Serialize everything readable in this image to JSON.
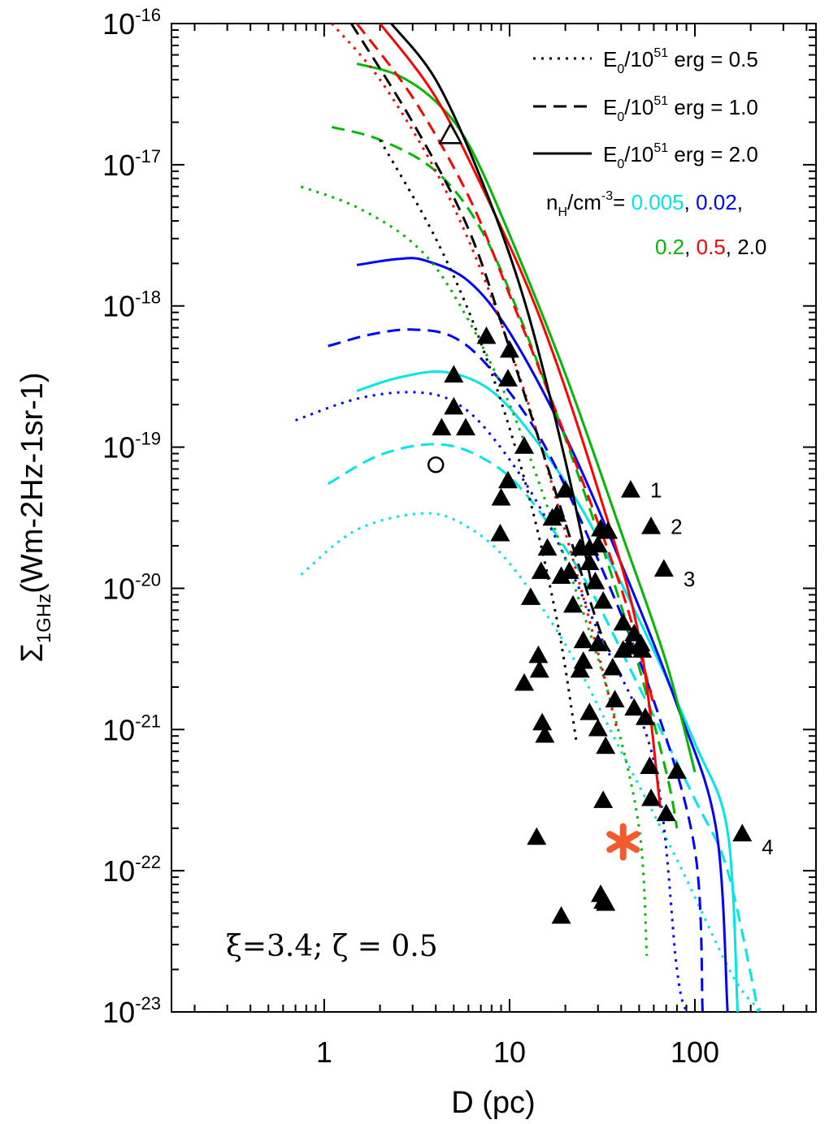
{
  "chart_data": {
    "type": "line",
    "xlabel": "D (pc)",
    "ylabel": {
      "symbol": "Σ",
      "subscript": "1GHz",
      "units": "(Wm-2Hz-1sr-1)"
    },
    "xscale": "log",
    "yscale": "log",
    "xlim": [
      0.15,
      450
    ],
    "ylim": [
      1e-23,
      1e-16
    ],
    "x_ticks": [
      {
        "value": 1,
        "label": "1"
      },
      {
        "value": 10,
        "label": "10"
      },
      {
        "value": 100,
        "label": "100"
      }
    ],
    "y_ticks": [
      {
        "value": 1e-16,
        "base": "10",
        "exp": "-16"
      },
      {
        "value": 1e-17,
        "base": "10",
        "exp": "-17"
      },
      {
        "value": 1e-18,
        "base": "10",
        "exp": "-18"
      },
      {
        "value": 1e-19,
        "base": "10",
        "exp": "-19"
      },
      {
        "value": 1e-20,
        "base": "10",
        "exp": "-20"
      },
      {
        "value": 1e-21,
        "base": "10",
        "exp": "-21"
      },
      {
        "value": 1e-22,
        "base": "10",
        "exp": "-22"
      },
      {
        "value": 1e-23,
        "base": "10",
        "exp": "-23"
      }
    ],
    "parameter_text": "ξ=3.4; ζ = 0.5",
    "legend": {
      "position": "top-right",
      "line_entries": [
        {
          "style": "dotted",
          "pre": "E",
          "sub": "0",
          "mid": "/10",
          "sup": "51",
          "post": " erg = 0.5"
        },
        {
          "style": "dashed",
          "pre": "E",
          "sub": "0",
          "mid": "/10",
          "sup": "51",
          "post": " erg = 1.0"
        },
        {
          "style": "solid",
          "pre": "E",
          "sub": "0",
          "mid": "/10",
          "sup": "51",
          "post": " erg = 2.0"
        }
      ],
      "density_title": {
        "pre": "n",
        "sub": "H",
        "mid": "/cm",
        "sup": "-3",
        "post": "= "
      },
      "densities": [
        {
          "label": "0.005",
          "color": "#00e5e5"
        },
        {
          "label": "0.02",
          "color": "#0000ff"
        },
        {
          "label": "0.2",
          "color": "#00b800"
        },
        {
          "label": "0.5",
          "color": "#ff0000"
        },
        {
          "label": "2.0",
          "color": "#000000"
        }
      ]
    },
    "series": [
      {
        "name": "n=0.005, E=0.5",
        "color": "#00e5e5",
        "style": "dotted",
        "points": [
          [
            0.75,
            1.25e-20
          ],
          [
            1.5,
            2.6e-20
          ],
          [
            3.5,
            3.4e-20
          ],
          [
            6,
            2.7e-20
          ],
          [
            10,
            1.5e-20
          ],
          [
            20,
            4e-21
          ],
          [
            40,
            7e-22
          ],
          [
            80,
            1.2e-22
          ],
          [
            160,
            1.8e-23
          ],
          [
            230,
            1e-23
          ]
        ]
      },
      {
        "name": "n=0.005, E=1.0",
        "color": "#00e5e5",
        "style": "dashed",
        "points": [
          [
            1.05,
            5.5e-20
          ],
          [
            2,
            8.8e-20
          ],
          [
            4,
            1.05e-19
          ],
          [
            7,
            8.5e-20
          ],
          [
            12,
            4.8e-20
          ],
          [
            25,
            1.2e-20
          ],
          [
            50,
            2e-21
          ],
          [
            100,
            3.2e-22
          ],
          [
            150,
            1e-22
          ],
          [
            220,
            1e-23
          ]
        ]
      },
      {
        "name": "n=0.005, E=2.0",
        "color": "#00e5e5",
        "style": "solid",
        "points": [
          [
            1.5,
            2.5e-19
          ],
          [
            2.5,
            3.1e-19
          ],
          [
            4.5,
            3.4e-19
          ],
          [
            8,
            2.5e-19
          ],
          [
            14,
            1.1e-19
          ],
          [
            25,
            3.5e-20
          ],
          [
            50,
            6e-21
          ],
          [
            100,
            8e-22
          ],
          [
            150,
            1.9e-22
          ],
          [
            170,
            1e-23
          ]
        ]
      },
      {
        "name": "n=0.02, E=0.5",
        "color": "#0000ff",
        "style": "dotted",
        "points": [
          [
            0.7,
            1.55e-19
          ],
          [
            1.5,
            2.2e-19
          ],
          [
            3,
            2.45e-19
          ],
          [
            5,
            2.1e-19
          ],
          [
            8,
            1.2e-19
          ],
          [
            15,
            3.5e-20
          ],
          [
            30,
            5e-21
          ],
          [
            60,
            6e-22
          ],
          [
            80,
            2e-23
          ],
          [
            90,
            1e-23
          ]
        ]
      },
      {
        "name": "n=0.02, E=1.0",
        "color": "#0000ff",
        "style": "dashed",
        "points": [
          [
            1.05,
            5.2e-19
          ],
          [
            1.8,
            6.3e-19
          ],
          [
            3,
            6.8e-19
          ],
          [
            5,
            6e-19
          ],
          [
            8,
            3.5e-19
          ],
          [
            15,
            1.1e-19
          ],
          [
            30,
            1.6e-20
          ],
          [
            60,
            1.6e-21
          ],
          [
            100,
            1.4e-22
          ],
          [
            110,
            1e-23
          ]
        ]
      },
      {
        "name": "n=0.02, E=2.0",
        "color": "#0000ff",
        "style": "solid",
        "points": [
          [
            1.5,
            1.95e-18
          ],
          [
            2.5,
            2.15e-18
          ],
          [
            3.5,
            2.1e-18
          ],
          [
            6,
            1.5e-18
          ],
          [
            10,
            6.5e-19
          ],
          [
            20,
            1.2e-19
          ],
          [
            40,
            1.5e-20
          ],
          [
            80,
            1.5e-21
          ],
          [
            130,
            2e-22
          ],
          [
            150,
            1e-23
          ]
        ]
      },
      {
        "name": "n=0.2, E=0.5",
        "color": "#00b800",
        "style": "dotted",
        "points": [
          [
            0.75,
            7e-18
          ],
          [
            1.5,
            5e-18
          ],
          [
            3,
            2.8e-18
          ],
          [
            5,
            1.2e-18
          ],
          [
            10,
            2e-19
          ],
          [
            20,
            1.6e-20
          ],
          [
            35,
            1.6e-21
          ],
          [
            50,
            2e-22
          ],
          [
            55,
            2.5e-23
          ]
        ]
      },
      {
        "name": "n=0.2, E=1.0",
        "color": "#00b800",
        "style": "dashed",
        "points": [
          [
            1.1,
            1.85e-17
          ],
          [
            2,
            1.5e-17
          ],
          [
            4,
            9e-18
          ],
          [
            7,
            3.5e-18
          ],
          [
            12,
            7e-19
          ],
          [
            25,
            5e-20
          ],
          [
            45,
            4.5e-21
          ],
          [
            70,
            5e-22
          ],
          [
            80,
            2e-22
          ]
        ]
      },
      {
        "name": "n=0.2, E=2.0",
        "color": "#00b800",
        "style": "solid",
        "points": [
          [
            1.5,
            5.2e-17
          ],
          [
            2.5,
            4.3e-17
          ],
          [
            4,
            2.8e-17
          ],
          [
            6,
            1.4e-17
          ],
          [
            10,
            3.2e-18
          ],
          [
            20,
            3.3e-19
          ],
          [
            40,
            2.5e-20
          ],
          [
            70,
            3e-21
          ],
          [
            100,
            5e-22
          ]
        ]
      },
      {
        "name": "n=0.5, E=0.5",
        "color": "#ff0000",
        "style": "dotted",
        "points": [
          [
            1.1,
            1e-16
          ],
          [
            2,
            4e-17
          ],
          [
            4,
            9e-18
          ],
          [
            7,
            1.8e-18
          ],
          [
            12,
            2.5e-19
          ],
          [
            20,
            2.5e-20
          ],
          [
            30,
            3.5e-21
          ],
          [
            38,
            1e-21
          ]
        ]
      },
      {
        "name": "n=0.5, E=1.0",
        "color": "#ff0000",
        "style": "dashed",
        "points": [
          [
            1.5,
            1e-16
          ],
          [
            3,
            3e-17
          ],
          [
            6,
            6e-18
          ],
          [
            10,
            1.2e-18
          ],
          [
            20,
            1.2e-19
          ],
          [
            40,
            1e-20
          ],
          [
            60,
            1.5e-21
          ]
        ]
      },
      {
        "name": "n=0.5, E=2.0",
        "color": "#ff0000",
        "style": "solid",
        "points": [
          [
            2.0,
            1e-16
          ],
          [
            4,
            3e-17
          ],
          [
            8,
            5e-18
          ],
          [
            15,
            7.5e-19
          ],
          [
            30,
            5e-20
          ],
          [
            50,
            4.5e-21
          ],
          [
            65,
            2.8e-22
          ]
        ]
      },
      {
        "name": "n=2.0, E=0.5",
        "color": "#000000",
        "style": "dotted",
        "points": [
          [
            2.0,
            1.5e-17
          ],
          [
            4,
            3e-18
          ],
          [
            7,
            5.5e-19
          ],
          [
            12,
            6e-20
          ],
          [
            18,
            6e-21
          ],
          [
            23,
            8e-22
          ]
        ]
      },
      {
        "name": "n=2.0, E=1.0",
        "color": "#000000",
        "style": "dashed",
        "points": [
          [
            1.4,
            1e-16
          ],
          [
            3,
            2e-17
          ],
          [
            6,
            3.5e-18
          ],
          [
            10,
            5e-19
          ],
          [
            18,
            4.5e-20
          ],
          [
            30,
            5.5e-21
          ],
          [
            35,
            3.5e-21
          ]
        ]
      },
      {
        "name": "n=2.0, E=2.0",
        "color": "#000000",
        "style": "solid",
        "points": [
          [
            2.3,
            1e-16
          ],
          [
            4,
            4e-17
          ],
          [
            7,
            8e-18
          ],
          [
            12,
            1.1e-18
          ],
          [
            20,
            8e-20
          ],
          [
            28,
            1e-20
          ]
        ]
      }
    ],
    "observed_remnants": [
      [
        7.5,
        6e-19
      ],
      [
        5.0,
        3.2e-19
      ],
      [
        4.3,
        1.35e-19
      ],
      [
        5.0,
        1.9e-19
      ],
      [
        5.8,
        1.35e-19
      ],
      [
        10,
        4.8e-19
      ],
      [
        9.8,
        3e-19
      ],
      [
        12,
        1e-19
      ],
      [
        9.8,
        5.7e-20
      ],
      [
        9,
        4.3e-20
      ],
      [
        8.9,
        2.4e-20
      ],
      [
        20,
        4.9e-20
      ],
      [
        18,
        3.3e-20
      ],
      [
        17,
        3.1e-20
      ],
      [
        16,
        1.9e-20
      ],
      [
        14.8,
        1.3e-20
      ],
      [
        13,
        8.5e-21
      ],
      [
        12,
        2.1e-21
      ],
      [
        14.3,
        3.3e-21
      ],
      [
        14.5,
        2.6e-21
      ],
      [
        15,
        1.1e-21
      ],
      [
        15.5,
        9e-22
      ],
      [
        14,
        1.7e-22
      ],
      [
        19,
        4.7e-23
      ],
      [
        21,
        1.3e-20
      ],
      [
        19,
        1.2e-20
      ],
      [
        22,
        7.5e-21
      ],
      [
        24,
        1.9e-20
      ],
      [
        27,
        1.9e-20
      ],
      [
        27,
        1.5e-20
      ],
      [
        31,
        2.6e-20
      ],
      [
        34,
        2.5e-20
      ],
      [
        30,
        2e-20
      ],
      [
        29,
        1.1e-20
      ],
      [
        32,
        8e-21
      ],
      [
        25,
        4.2e-21
      ],
      [
        30,
        4e-21
      ],
      [
        25,
        3e-21
      ],
      [
        24,
        2.6e-21
      ],
      [
        27,
        1.3e-21
      ],
      [
        30,
        1e-21
      ],
      [
        33,
        7.5e-22
      ],
      [
        32,
        3.1e-22
      ],
      [
        31,
        6.7e-23
      ],
      [
        32,
        6e-23
      ],
      [
        33,
        5.8e-23
      ],
      [
        36,
        2.7e-21
      ],
      [
        37,
        1.6e-21
      ],
      [
        41,
        5.6e-21
      ],
      [
        41,
        3.6e-21
      ],
      [
        47,
        4.7e-21
      ],
      [
        44,
        3.8e-21
      ],
      [
        51,
        4e-21
      ],
      [
        52,
        3.6e-21
      ],
      [
        47,
        1.4e-21
      ],
      [
        54,
        1.2e-21
      ],
      [
        57,
        5.4e-22
      ],
      [
        58,
        3.2e-22
      ],
      [
        70,
        2.5e-22
      ],
      [
        80,
        5e-22
      ],
      [
        45,
        4.9e-20
      ],
      [
        58,
        2.7e-20
      ],
      [
        68,
        1.35e-20
      ],
      [
        180,
        1.8e-22
      ]
    ],
    "labeled_remnants": [
      {
        "label": "1",
        "x": 45,
        "y": 4.9e-20
      },
      {
        "label": "2",
        "x": 58,
        "y": 2.7e-20
      },
      {
        "label": "3",
        "x": 68,
        "y": 1.35e-20
      },
      {
        "label": "4",
        "x": 180,
        "y": 1.8e-22
      }
    ],
    "open_triangle": {
      "x": 4.8,
      "y": 1.6e-17
    },
    "open_circle": {
      "x": 4.0,
      "y": 7.5e-20
    },
    "star": {
      "x": 41,
      "y": 1.6e-22,
      "color": "#f35a2c"
    }
  }
}
